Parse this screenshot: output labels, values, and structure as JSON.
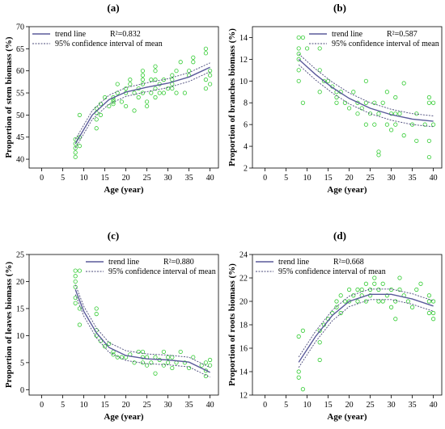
{
  "chart_data": [
    {
      "panel": "(a)",
      "type": "scatter",
      "xlabel": "Age (year)",
      "ylabel": "Proportion of stem biomass (%)",
      "xlim": [
        -3,
        42
      ],
      "ylim": [
        38,
        70
      ],
      "xticks": [
        0,
        5,
        10,
        15,
        20,
        25,
        30,
        35,
        40
      ],
      "yticks": [
        40,
        45,
        50,
        55,
        60,
        65,
        70
      ],
      "legend": {
        "placement": "top-left",
        "trend_label": "trend line",
        "r2_label": "R²=0.832",
        "ci_label": "95% confidence interval of mean"
      },
      "colors": {
        "points": "#33cc33",
        "trend": "#5a5a9a",
        "ci": "#4a4a7a"
      },
      "trend": [
        [
          8,
          43.5
        ],
        [
          12,
          50
        ],
        [
          16,
          53.5
        ],
        [
          20,
          55.2
        ],
        [
          25,
          56.3
        ],
        [
          30,
          57.2
        ],
        [
          35,
          58.6
        ],
        [
          40,
          60.8
        ]
      ],
      "ci_halfwidth": 1.0,
      "points": [
        [
          8,
          40.5
        ],
        [
          8,
          41.5
        ],
        [
          8,
          42.5
        ],
        [
          8,
          43.5
        ],
        [
          8,
          44.5
        ],
        [
          9,
          43
        ],
        [
          9,
          45
        ],
        [
          9,
          50
        ],
        [
          13,
          47
        ],
        [
          13,
          49
        ],
        [
          13,
          50.5
        ],
        [
          13,
          51.5
        ],
        [
          14,
          52.5
        ],
        [
          14,
          50
        ],
        [
          15,
          54
        ],
        [
          16,
          52
        ],
        [
          17,
          52.5
        ],
        [
          17,
          53
        ],
        [
          17,
          53.5
        ],
        [
          17,
          54
        ],
        [
          18,
          55
        ],
        [
          18,
          57
        ],
        [
          19,
          53
        ],
        [
          20,
          52
        ],
        [
          20,
          55
        ],
        [
          20,
          56
        ],
        [
          21,
          57
        ],
        [
          21,
          58
        ],
        [
          22,
          55
        ],
        [
          22,
          51
        ],
        [
          23,
          54
        ],
        [
          23,
          56
        ],
        [
          24,
          55
        ],
        [
          24,
          57
        ],
        [
          24,
          58
        ],
        [
          24,
          59
        ],
        [
          24,
          60
        ],
        [
          25,
          52
        ],
        [
          25,
          53
        ],
        [
          26,
          55
        ],
        [
          26,
          58
        ],
        [
          27,
          54
        ],
        [
          27,
          56
        ],
        [
          27,
          58
        ],
        [
          27,
          60
        ],
        [
          27,
          61
        ],
        [
          28,
          55
        ],
        [
          28,
          57
        ],
        [
          29,
          55
        ],
        [
          29,
          58
        ],
        [
          30,
          56
        ],
        [
          31,
          56
        ],
        [
          31,
          57
        ],
        [
          31,
          58
        ],
        [
          31,
          59
        ],
        [
          32,
          55
        ],
        [
          32,
          60
        ],
        [
          33,
          62
        ],
        [
          34,
          55
        ],
        [
          35,
          59
        ],
        [
          35,
          60
        ],
        [
          36,
          62
        ],
        [
          36,
          63
        ],
        [
          39,
          56
        ],
        [
          39,
          58
        ],
        [
          39,
          64
        ],
        [
          39,
          65
        ],
        [
          40,
          57
        ],
        [
          40,
          59
        ],
        [
          40,
          60
        ]
      ]
    },
    {
      "panel": "(b)",
      "type": "scatter",
      "xlabel": "Age (year)",
      "ylabel": "Proportion of branches biomass (%)",
      "xlim": [
        -3,
        42
      ],
      "ylim": [
        2,
        15
      ],
      "xticks": [
        0,
        5,
        10,
        15,
        20,
        25,
        30,
        35,
        40
      ],
      "yticks": [
        2,
        4,
        6,
        8,
        10,
        12,
        14
      ],
      "legend": {
        "placement": "top-right",
        "trend_label": "trend line",
        "r2_label": "R²=0.587",
        "ci_label": "95% confidence interval of mean"
      },
      "colors": {
        "points": "#33cc33",
        "trend": "#5a5a9a",
        "ci": "#4a4a7a"
      },
      "trend": [
        [
          8,
          12.0
        ],
        [
          12,
          10.6
        ],
        [
          16,
          9.4
        ],
        [
          20,
          8.4
        ],
        [
          25,
          7.5
        ],
        [
          30,
          6.9
        ],
        [
          35,
          6.5
        ],
        [
          40,
          6.3
        ]
      ],
      "ci_halfwidth": 0.5,
      "points": [
        [
          8,
          14
        ],
        [
          8,
          13
        ],
        [
          8,
          12.5
        ],
        [
          8,
          12
        ],
        [
          8,
          11
        ],
        [
          8,
          10
        ],
        [
          9,
          14
        ],
        [
          9,
          8
        ],
        [
          10,
          13
        ],
        [
          13,
          13
        ],
        [
          13,
          11
        ],
        [
          13,
          9
        ],
        [
          14,
          10
        ],
        [
          15,
          10
        ],
        [
          16,
          9.5
        ],
        [
          17,
          9
        ],
        [
          17,
          8.5
        ],
        [
          17,
          8
        ],
        [
          18,
          9
        ],
        [
          19,
          8
        ],
        [
          20,
          7.5
        ],
        [
          21,
          9
        ],
        [
          22,
          7
        ],
        [
          22,
          8
        ],
        [
          23,
          7.5
        ],
        [
          24,
          6
        ],
        [
          24,
          8
        ],
        [
          24,
          10
        ],
        [
          25,
          7
        ],
        [
          26,
          8
        ],
        [
          26,
          6
        ],
        [
          27,
          3.5
        ],
        [
          27,
          3.2
        ],
        [
          27,
          7
        ],
        [
          28,
          8
        ],
        [
          29,
          6
        ],
        [
          29,
          9
        ],
        [
          30,
          7
        ],
        [
          30,
          5.5
        ],
        [
          31,
          6
        ],
        [
          31,
          7
        ],
        [
          31,
          8.5
        ],
        [
          32,
          7
        ],
        [
          33,
          9.8
        ],
        [
          33,
          5
        ],
        [
          35,
          6
        ],
        [
          36,
          4.5
        ],
        [
          36,
          7
        ],
        [
          38,
          6
        ],
        [
          39,
          3
        ],
        [
          39,
          4.5
        ],
        [
          39,
          8
        ],
        [
          39,
          8.5
        ],
        [
          40,
          6
        ],
        [
          40,
          8
        ]
      ]
    },
    {
      "panel": "(c)",
      "type": "scatter",
      "xlabel": "Age (year)",
      "ylabel": "Proportion of leaves biomass (%)",
      "xlim": [
        -3,
        42
      ],
      "ylim": [
        -1,
        25
      ],
      "xticks": [
        0,
        5,
        10,
        15,
        20,
        25,
        30,
        35,
        40
      ],
      "yticks": [
        0,
        5,
        10,
        15,
        20,
        25
      ],
      "legend": {
        "placement": "top-right",
        "trend_label": "trend line",
        "r2_label": "R²=0.880",
        "ci_label": "95% confidence interval of mean"
      },
      "colors": {
        "points": "#33cc33",
        "trend": "#5a5a9a",
        "ci": "#4a4a7a"
      },
      "trend": [
        [
          8,
          18.5
        ],
        [
          10,
          14.5
        ],
        [
          13,
          10.5
        ],
        [
          16,
          7.8
        ],
        [
          20,
          6.3
        ],
        [
          25,
          5.7
        ],
        [
          30,
          5.5
        ],
        [
          35,
          5.1
        ],
        [
          40,
          3.2
        ]
      ],
      "ci_halfwidth": 0.9,
      "points": [
        [
          8,
          22
        ],
        [
          8,
          21
        ],
        [
          8,
          20
        ],
        [
          8,
          19
        ],
        [
          8,
          17
        ],
        [
          8,
          16
        ],
        [
          9,
          22
        ],
        [
          9,
          15
        ],
        [
          9,
          12
        ],
        [
          13,
          15
        ],
        [
          13,
          14
        ],
        [
          13,
          11
        ],
        [
          13,
          10
        ],
        [
          14,
          9
        ],
        [
          15,
          8
        ],
        [
          16,
          8.5
        ],
        [
          17,
          7
        ],
        [
          17,
          6.5
        ],
        [
          18,
          6
        ],
        [
          19,
          6
        ],
        [
          20,
          6
        ],
        [
          21,
          6.5
        ],
        [
          22,
          5
        ],
        [
          23,
          7
        ],
        [
          24,
          5
        ],
        [
          24,
          6
        ],
        [
          24,
          7
        ],
        [
          25,
          4.5
        ],
        [
          25,
          6
        ],
        [
          26,
          5
        ],
        [
          27,
          3
        ],
        [
          27,
          6
        ],
        [
          28,
          5.5
        ],
        [
          29,
          4.5
        ],
        [
          29,
          7
        ],
        [
          30,
          5
        ],
        [
          30,
          6
        ],
        [
          31,
          4
        ],
        [
          31,
          6
        ],
        [
          32,
          5
        ],
        [
          33,
          7
        ],
        [
          34,
          5
        ],
        [
          35,
          4
        ],
        [
          36,
          6
        ],
        [
          38,
          4.5
        ],
        [
          39,
          2.5
        ],
        [
          39,
          3.5
        ],
        [
          39,
          5
        ],
        [
          40,
          4.5
        ],
        [
          40,
          5.5
        ]
      ]
    },
    {
      "panel": "(d)",
      "type": "scatter",
      "xlabel": "Age (year)",
      "ylabel": "Proportion of roots biomass (%)",
      "xlim": [
        -3,
        42
      ],
      "ylim": [
        12,
        24
      ],
      "xticks": [
        0,
        5,
        10,
        15,
        20,
        25,
        30,
        35,
        40
      ],
      "yticks": [
        12,
        14,
        16,
        18,
        20,
        22,
        24
      ],
      "legend": {
        "placement": "top-left",
        "trend_label": "trend line",
        "r2_label": "R²=0.668",
        "ci_label": "95% confidence interval of mean"
      },
      "colors": {
        "points": "#33cc33",
        "trend": "#5a5a9a",
        "ci": "#4a4a7a"
      },
      "trend": [
        [
          8,
          14.8
        ],
        [
          12,
          17.0
        ],
        [
          16,
          18.8
        ],
        [
          20,
          20.0
        ],
        [
          25,
          20.6
        ],
        [
          30,
          20.6
        ],
        [
          35,
          20.2
        ],
        [
          40,
          19.6
        ]
      ],
      "ci_halfwidth": 0.45,
      "points": [
        [
          8,
          13.5
        ],
        [
          8,
          14
        ],
        [
          8,
          17
        ],
        [
          9,
          12.5
        ],
        [
          9,
          17.5
        ],
        [
          13,
          15
        ],
        [
          13,
          16.5
        ],
        [
          13,
          17.5
        ],
        [
          14,
          18
        ],
        [
          15,
          18.5
        ],
        [
          16,
          19
        ],
        [
          17,
          19.5
        ],
        [
          17,
          20
        ],
        [
          18,
          19
        ],
        [
          18,
          20.5
        ],
        [
          19,
          20
        ],
        [
          20,
          20
        ],
        [
          20,
          21
        ],
        [
          21,
          20.5
        ],
        [
          22,
          20
        ],
        [
          22,
          21
        ],
        [
          23,
          21
        ],
        [
          23,
          20.5
        ],
        [
          24,
          20
        ],
        [
          24,
          21.5
        ],
        [
          25,
          21
        ],
        [
          25,
          20.5
        ],
        [
          26,
          21.5
        ],
        [
          26,
          22
        ],
        [
          27,
          20
        ],
        [
          27,
          21
        ],
        [
          28,
          21.5
        ],
        [
          28,
          20
        ],
        [
          29,
          20.5
        ],
        [
          30,
          19.5
        ],
        [
          30,
          21
        ],
        [
          31,
          18.5
        ],
        [
          31,
          20
        ],
        [
          32,
          21
        ],
        [
          32,
          22
        ],
        [
          33,
          20.5
        ],
        [
          34,
          20
        ],
        [
          35,
          19.5
        ],
        [
          36,
          21
        ],
        [
          37,
          21.5
        ],
        [
          39,
          19
        ],
        [
          39,
          20
        ],
        [
          39,
          20.5
        ],
        [
          40,
          18.5
        ],
        [
          40,
          19
        ],
        [
          40,
          20
        ]
      ]
    }
  ]
}
